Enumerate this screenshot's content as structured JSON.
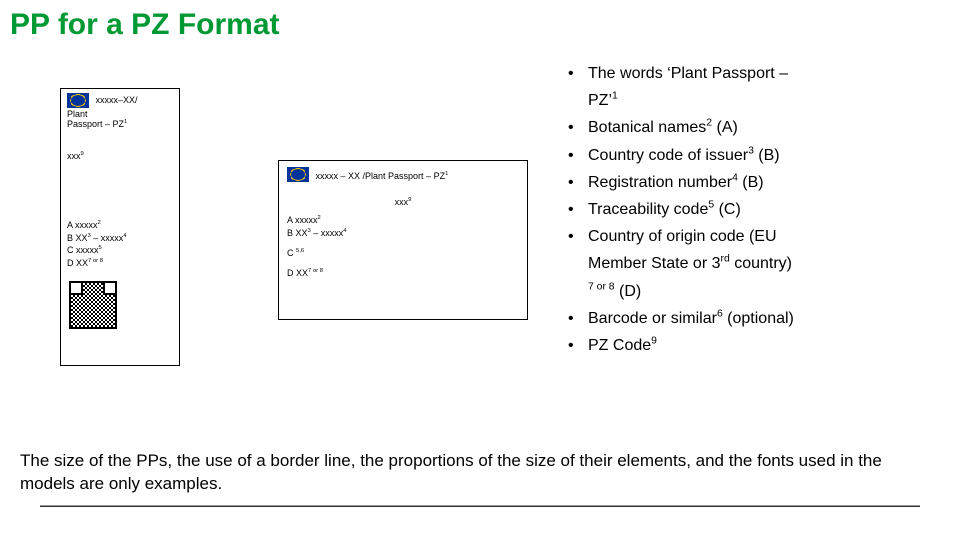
{
  "title_color": "#009933",
  "title": "PP for a PZ Format",
  "passport_v": {
    "line1": "xxxxx–XX/",
    "line2": "Plant",
    "line3": "Passport – PZ",
    "line3_sup": "1",
    "pz9": "xxx",
    "pz9_sup": "9",
    "codeA": "A  xxxxx",
    "codeA_sup": "2",
    "codeB": "B  XX",
    "codeB_sup1": "3",
    "codeB_mid": " – xxxxx",
    "codeB_sup2": "4",
    "codeC": "C  xxxxx",
    "codeC_sup": "5",
    "codeD": "D  XX",
    "codeD_sup": "7 or 8"
  },
  "passport_h": {
    "line1_a": "xxxxx  – XX /Plant Passport – PZ",
    "line1_sup": "1",
    "xxx9": "xxx",
    "xxx9_sup": "9",
    "codeA": "A  xxxxx",
    "codeA_sup": "2",
    "codeB": "B  XX",
    "codeB_sup1": "3",
    "codeB_mid": " – xxxxx",
    "codeB_sup2": "4",
    "codeC_label": "C  ",
    "codeC_sup": "5,6",
    "codeD": "D  XX",
    "codeD_sup": "7 or 8"
  },
  "bul1a": "The words ‘Plant Passport –",
  "bul1b": "PZ’",
  "bul1b_sup": "1",
  "bul2": "Botanical names",
  "bul2_sup": "2",
  "bul2_tail": " (A)",
  "bul3": "Country code of issuer",
  "bul3_sup": "3",
  "bul3_tail": " (B)",
  "bul4": "Registration number",
  "bul4_sup": "4",
  "bul4_tail": " (B)",
  "bul5_pre": " ",
  "bul5": "Traceability code",
  "bul5_sup": "5",
  "bul5_tail": " (C)",
  "bul6a": "Country of origin code  (EU",
  "bul6b": "Member State or 3",
  "bul6b_sup": "rd",
  "bul6b_tail": " country)",
  "bul6c_sup": "7 or 8",
  "bul6c_tail": " (D)",
  "bul7": "Barcode or similar",
  "bul7_sup": "6",
  "bul7_tail": " (optional)",
  "bul8": "PZ Code",
  "bul8_sup": "9",
  "footer": "The size of the PPs, the use of a border line, the proportions of the size of their elements, and the fonts used in the models are only examples."
}
